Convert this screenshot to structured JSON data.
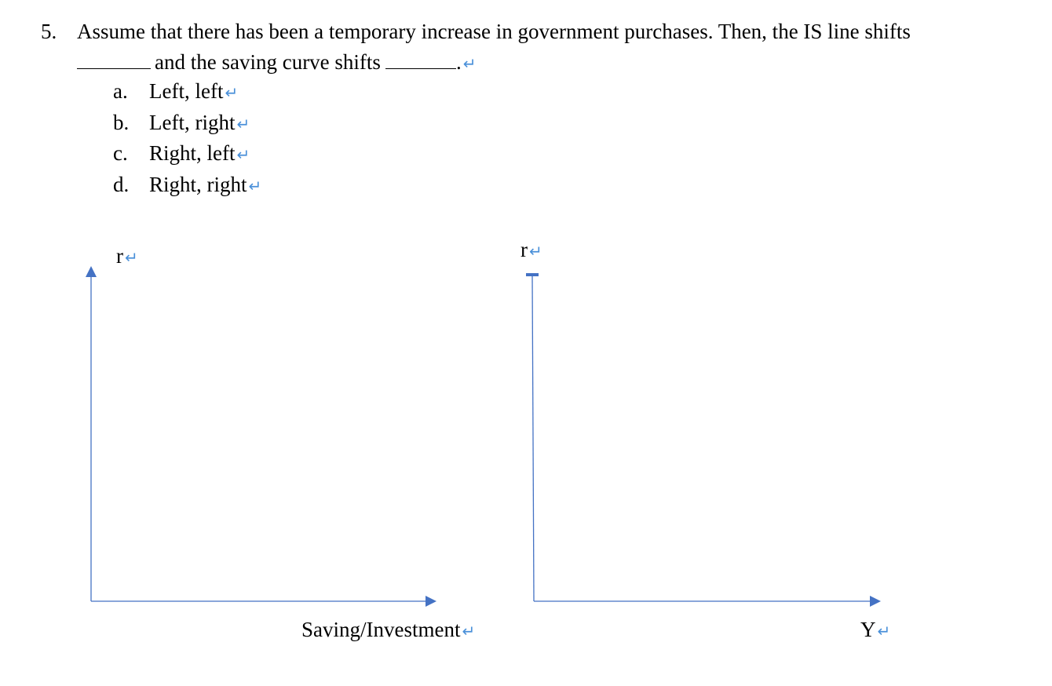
{
  "question": {
    "number": "5.",
    "text_line1": "Assume that there has been a temporary increase in government purchases. Then, the IS line shifts",
    "text_line2_mid": "and the saving curve shifts",
    "text_line2_end": ".",
    "return_symbol": "↵"
  },
  "options": [
    {
      "letter": "a.",
      "text": "Left, left"
    },
    {
      "letter": "b.",
      "text": "Left, right"
    },
    {
      "letter": "c.",
      "text": "Right, left"
    },
    {
      "letter": "d.",
      "text": "Right, right"
    }
  ],
  "graphs": {
    "left": {
      "y_label": "r",
      "x_label": "Saving/Investment"
    },
    "right": {
      "y_label": "r",
      "x_label": "Y"
    }
  },
  "colors": {
    "axis": "#4472c4",
    "return_mark": "#4a90d9"
  }
}
